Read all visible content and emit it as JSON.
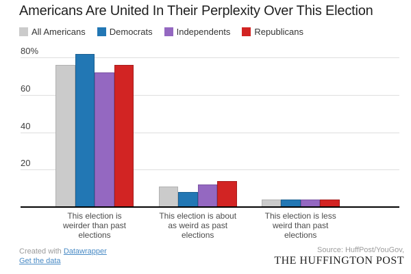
{
  "chart_data": {
    "type": "bar",
    "title": "Americans Are United In Their Perplexity Over This Election",
    "categories": [
      [
        "This election is",
        "weirder than past",
        "elections"
      ],
      [
        "This election is about",
        "as weird as past",
        "elections"
      ],
      [
        "This election is less",
        "weird than past",
        "elections"
      ]
    ],
    "series": [
      {
        "name": "All Americans",
        "color": "#cbcbcb",
        "stroke": "#b0b0b0",
        "values": [
          76,
          11,
          4
        ]
      },
      {
        "name": "Democrats",
        "color": "#2277b4",
        "stroke": "#1a5f90",
        "values": [
          82,
          8,
          4
        ]
      },
      {
        "name": "Independents",
        "color": "#9468c1",
        "stroke": "#7a53a3",
        "values": [
          72,
          12,
          4
        ]
      },
      {
        "name": "Republicans",
        "color": "#d22423",
        "stroke": "#a61c1c",
        "values": [
          76,
          14,
          4
        ]
      }
    ],
    "y_ticks": [
      {
        "value": 20,
        "label": "20"
      },
      {
        "value": 40,
        "label": "40"
      },
      {
        "value": 60,
        "label": "60"
      },
      {
        "value": 80,
        "label": "80%"
      }
    ],
    "ylim": [
      0,
      85
    ],
    "grid": true,
    "legend_position": "top"
  },
  "footer": {
    "credit_prefix": "Created with ",
    "credit_link": "Datawrapper",
    "data_link": "Get the data",
    "source": "Source: HuffPost/YouGov,",
    "brand": "THE HUFFINGTON POST"
  },
  "colors": {
    "grid": "#dedede",
    "axis": "#000000"
  }
}
